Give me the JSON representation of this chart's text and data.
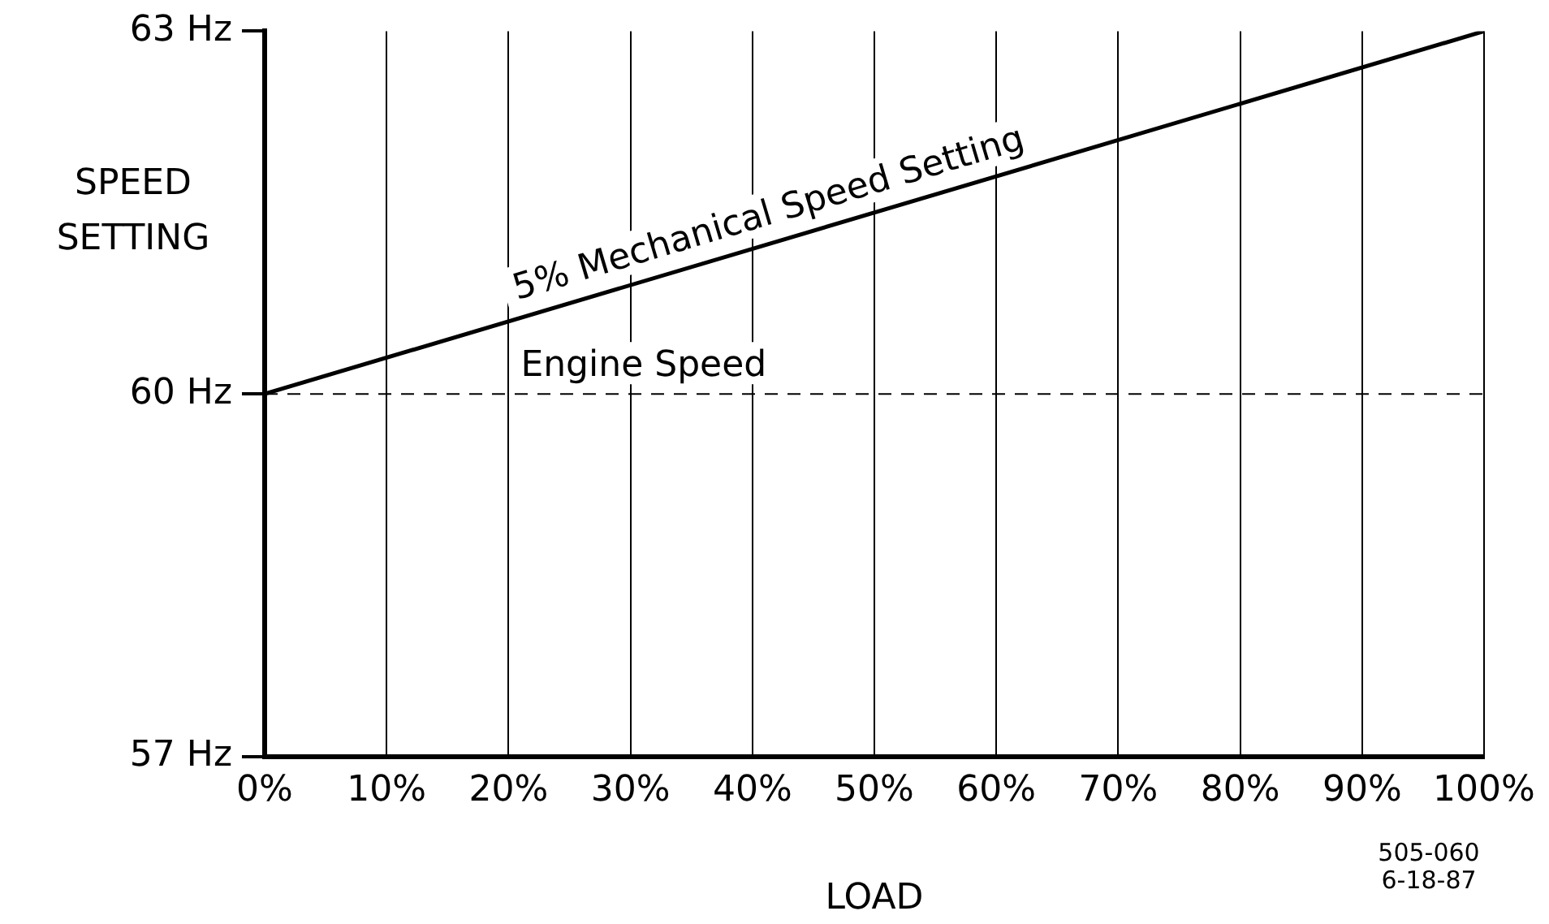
{
  "chart_data": {
    "type": "line",
    "xlabel": "LOAD",
    "ylabel": "SPEED SETTING",
    "x": [
      0,
      100
    ],
    "series": [
      {
        "color": "#000000",
        "values": [
          60,
          63
        ]
      }
    ],
    "xlim": [
      0,
      100
    ],
    "xticks": [
      {
        "value": 0,
        "label": "0%"
      },
      {
        "value": 10,
        "label": "10%"
      },
      {
        "value": 20,
        "label": "20%"
      },
      {
        "value": 30,
        "label": "30%"
      },
      {
        "value": 40,
        "label": "40%"
      },
      {
        "value": 50,
        "label": "50%"
      },
      {
        "value": 60,
        "label": "60%"
      },
      {
        "value": 70,
        "label": "70%"
      },
      {
        "value": 80,
        "label": "80%"
      },
      {
        "value": 90,
        "label": "90%"
      },
      {
        "value": 100,
        "label": "100%"
      }
    ],
    "ylim": [
      57,
      63
    ],
    "yticks": [
      {
        "value": 57,
        "label": "57 Hz"
      },
      {
        "value": 60,
        "label": "60 Hz"
      },
      {
        "value": 63,
        "label": "63 Hz"
      }
    ],
    "ref_lines": [
      {
        "axis": "y",
        "value": 60,
        "label": "Engine Speed",
        "color": "#000000",
        "line_style": "dashed"
      }
    ],
    "annotations": [
      "5% Mechanical Speed Setting",
      "505-060",
      "6-18-87"
    ],
    "grid": "x",
    "legend": false,
    "marker": "none",
    "line_style": "solid"
  }
}
